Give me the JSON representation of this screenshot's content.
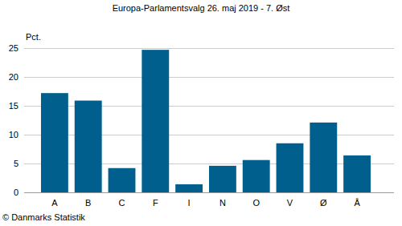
{
  "chart_data": {
    "type": "bar",
    "title": "Europa-Parlamentsvalg 26. maj 2019 - 7. Øst",
    "y_label": "Pct.",
    "source": "© Danmarks Statistik",
    "categories": [
      "A",
      "B",
      "C",
      "F",
      "I",
      "N",
      "O",
      "V",
      "Ø",
      "Å"
    ],
    "values": [
      17.2,
      15.9,
      4.2,
      24.7,
      1.4,
      4.6,
      5.6,
      8.5,
      12.1,
      6.4
    ],
    "color": "#005f8d",
    "ylim": [
      0,
      25
    ],
    "yticks": [
      0,
      5,
      10,
      15,
      20,
      25
    ],
    "grid": true
  }
}
